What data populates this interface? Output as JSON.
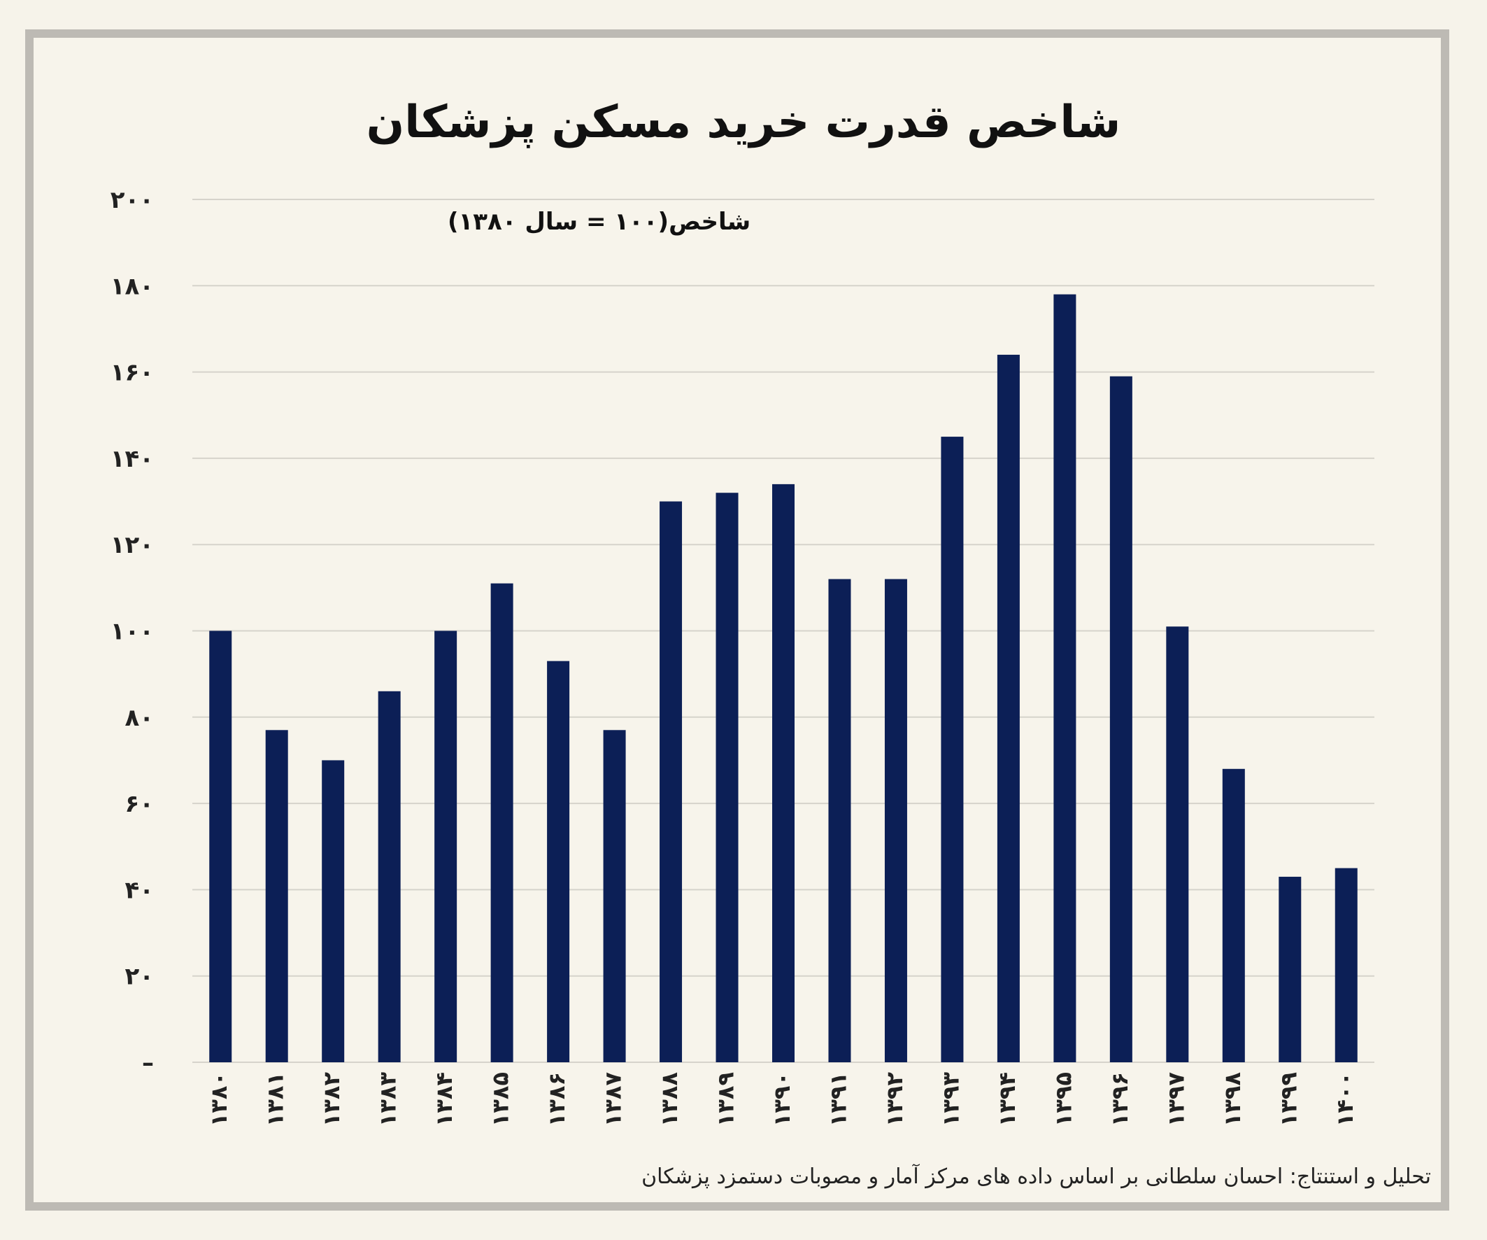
{
  "chart_data": {
    "type": "bar",
    "title": "شاخص قدرت خرید مسکن پزشکان",
    "ylabel": "شاخص(۱۰۰ = سال ۱۳۸۰)",
    "xlabel": "",
    "ylim": [
      0,
      200
    ],
    "y_ticks": [
      "–",
      "۲۰",
      "۴۰",
      "۶۰",
      "۸۰",
      "۱۰۰",
      "۱۲۰",
      "۱۴۰",
      "۱۶۰",
      "۱۸۰",
      "۲۰۰"
    ],
    "grid": true,
    "categories": [
      "۱۳۸۰",
      "۱۳۸۱",
      "۱۳۸۲",
      "۱۳۸۳",
      "۱۳۸۴",
      "۱۳۸۵",
      "۱۳۸۶",
      "۱۳۸۷",
      "۱۳۸۸",
      "۱۳۸۹",
      "۱۳۹۰",
      "۱۳۹۱",
      "۱۳۹۲",
      "۱۳۹۳",
      "۱۳۹۴",
      "۱۳۹۵",
      "۱۳۹۶",
      "۱۳۹۷",
      "۱۳۹۸",
      "۱۳۹۹",
      "۱۴۰۰"
    ],
    "values": [
      100,
      77,
      70,
      86,
      100,
      111,
      93,
      77,
      130,
      132,
      134,
      112,
      112,
      145,
      164,
      178,
      159,
      101,
      68,
      43,
      45
    ],
    "source": "تحلیل و استنتاج: احسان سلطانی بر اساس داده های مرکز آمار و مصوبات دستمزد پزشکان"
  },
  "colors": {
    "bar": "#0c1f56",
    "grid": "#d6d3cb",
    "background": "#f7f4eb",
    "frame": "#bdbab4"
  }
}
